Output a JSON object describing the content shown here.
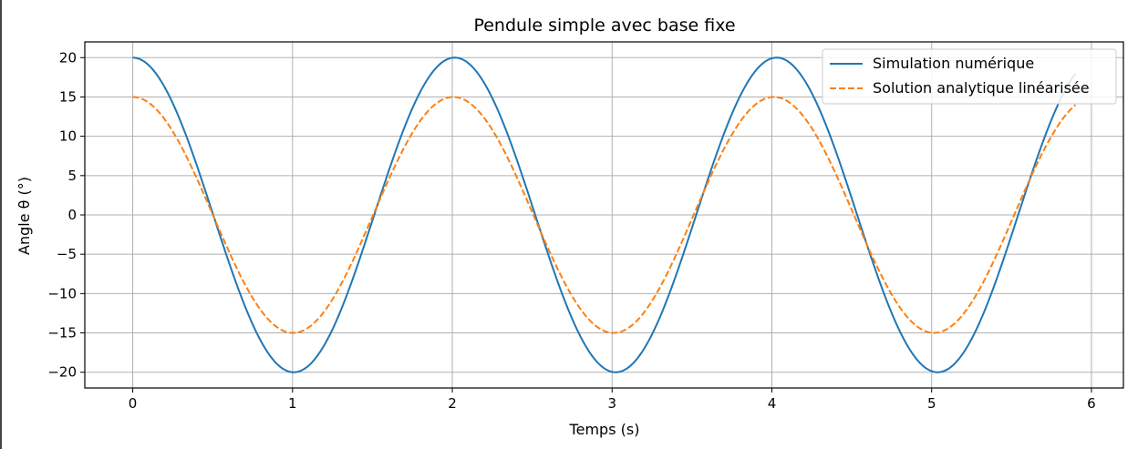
{
  "colors": {
    "series1": "#1f77b4",
    "series2": "#ff7f0e",
    "grid": "#b0b0b0",
    "axes": "#000000",
    "background": "#ffffff"
  },
  "chart_data": {
    "type": "line",
    "title": "Pendule simple avec base fixe",
    "xlabel": "Temps (s)",
    "ylabel": "Angle θ (°)",
    "xlim": [
      -0.3,
      6.2
    ],
    "ylim": [
      -22,
      22
    ],
    "xticks": [
      0,
      1,
      2,
      3,
      4,
      5,
      6
    ],
    "yticks": [
      20,
      15,
      10,
      5,
      0,
      -5,
      -10,
      -15,
      -20
    ],
    "ytick_labels": [
      "20",
      "15",
      "10",
      "5",
      "0",
      "−5",
      "−10",
      "−15",
      "−20"
    ],
    "grid": true,
    "legend_position": "top-right",
    "x_range": [
      0,
      5.9
    ],
    "series": [
      {
        "name": "Simulation numérique",
        "style": "solid",
        "color": "#1f77b4",
        "amplitude_deg": 20,
        "period_s": 2.015,
        "x": [
          0,
          0.25,
          0.5,
          0.75,
          1.0,
          1.25,
          1.5,
          1.75,
          2.0,
          2.25,
          2.5,
          2.75,
          3.0,
          3.25,
          3.5,
          3.75,
          4.0,
          4.25,
          4.5,
          4.75,
          5.0,
          5.25,
          5.5,
          5.75,
          5.9
        ],
        "y": [
          20.0,
          14.3,
          0.8,
          -13.1,
          -20.0,
          -15.5,
          -2.7,
          11.9,
          19.9,
          16.6,
          4.5,
          -10.6,
          -19.8,
          -17.6,
          -6.4,
          9.1,
          19.6,
          18.4,
          8.1,
          -7.6,
          -19.3,
          -19.1,
          -9.8,
          6.0,
          14.5
        ]
      },
      {
        "name": "Solution analytique linéarisée",
        "style": "dashed",
        "color": "#ff7f0e",
        "amplitude_deg": 15,
        "period_s": 2.006,
        "x": [
          0,
          0.25,
          0.5,
          0.75,
          1.0,
          1.25,
          1.5,
          1.75,
          2.0,
          2.25,
          2.5,
          2.75,
          3.0,
          3.25,
          3.5,
          3.75,
          4.0,
          4.25,
          4.5,
          4.75,
          5.0,
          5.25,
          5.5,
          5.75,
          5.9
        ],
        "y": [
          15.0,
          10.7,
          0.2,
          -10.4,
          -15.0,
          -11.0,
          -0.6,
          10.1,
          15.0,
          11.3,
          0.9,
          -9.8,
          -15.0,
          -11.5,
          -1.3,
          9.5,
          15.0,
          11.8,
          1.7,
          -9.2,
          -14.9,
          -12.1,
          -2.1,
          8.9,
          13.7
        ]
      }
    ]
  }
}
